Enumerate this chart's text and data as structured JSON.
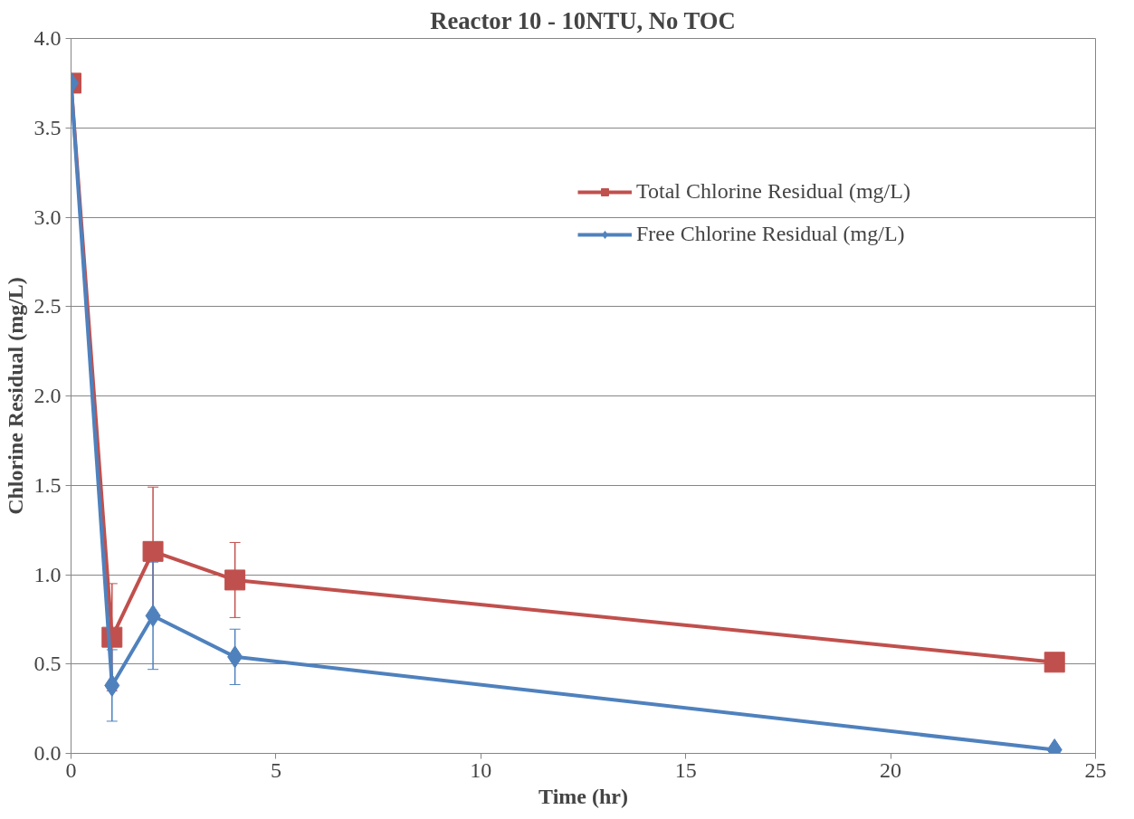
{
  "chart_data": {
    "type": "line",
    "title": "Reactor 10 - 10NTU, No TOC",
    "xlabel": "Time (hr)",
    "ylabel": "Chlorine Residual (mg/L)",
    "x": [
      0,
      1,
      2,
      4,
      24
    ],
    "series": [
      {
        "name": "Total Chlorine Residual (mg/L)",
        "color": "#c0504d",
        "marker": "square",
        "values": [
          3.75,
          0.65,
          1.13,
          0.97,
          0.51
        ],
        "errors": [
          null,
          0.3,
          0.36,
          0.21,
          null
        ]
      },
      {
        "name": "Free Chlorine Residual (mg/L)",
        "color": "#4f81bd",
        "marker": "diamond",
        "values": [
          3.75,
          0.38,
          0.77,
          0.54,
          0.02
        ],
        "errors": [
          null,
          0.2,
          0.3,
          0.155,
          null
        ]
      }
    ],
    "xlim": [
      0,
      25
    ],
    "xticks": [
      0,
      5,
      10,
      15,
      20,
      25
    ],
    "ylim": [
      0,
      4
    ],
    "yticks": [
      {
        "value": 0,
        "label": "0.0"
      },
      {
        "value": 0.5,
        "label": "0.5"
      },
      {
        "value": 1,
        "label": "1.0"
      },
      {
        "value": 1.5,
        "label": "1.5"
      },
      {
        "value": 2,
        "label": "2.0"
      },
      {
        "value": 2.5,
        "label": "2.5"
      },
      {
        "value": 3,
        "label": "3.0"
      },
      {
        "value": 3.5,
        "label": "3.5"
      },
      {
        "value": 4,
        "label": "4.0"
      }
    ],
    "grid": "y",
    "legend": "top right",
    "line_style": "solid"
  }
}
